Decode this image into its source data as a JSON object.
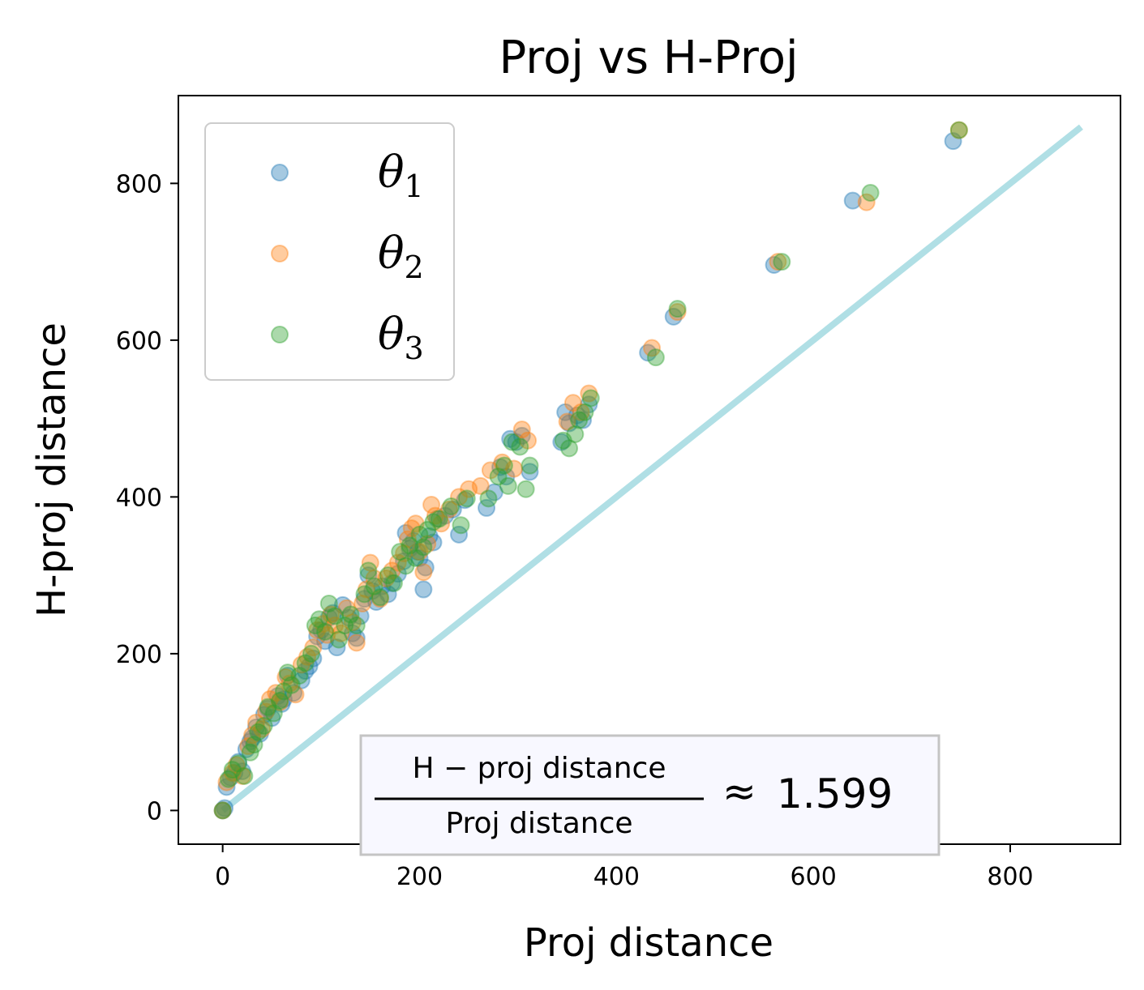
{
  "chart_data": {
    "type": "scatter",
    "title": "Proj vs H-Proj",
    "xlabel": "Proj distance",
    "ylabel": "H-proj distance",
    "xlim": [
      -45,
      912
    ],
    "ylim": [
      -43,
      912
    ],
    "xticks": [
      0,
      200,
      400,
      600,
      800
    ],
    "yticks": [
      0,
      200,
      400,
      600,
      800
    ],
    "xtick_labels": [
      "0",
      "200",
      "400",
      "600",
      "800"
    ],
    "ytick_labels": [
      "0",
      "200",
      "400",
      "600",
      "800"
    ],
    "grid": false,
    "legend_position": "top-left",
    "reference_line": {
      "x": [
        0,
        872
      ],
      "y": [
        0,
        872
      ],
      "color": "#b0dfe5"
    },
    "annotation": {
      "numerator": "H − proj  distance",
      "denominator": "Proj  distance",
      "approx": "≈",
      "value": "1.599"
    },
    "series": [
      {
        "name_base": "θ",
        "name_sub": "1",
        "color": "#1f77b4",
        "points": [
          [
            0,
            0
          ],
          [
            2,
            3
          ],
          [
            4,
            30
          ],
          [
            8,
            42
          ],
          [
            12,
            48
          ],
          [
            16,
            62
          ],
          [
            20,
            50
          ],
          [
            24,
            78
          ],
          [
            28,
            88
          ],
          [
            30,
            92
          ],
          [
            34,
            106
          ],
          [
            38,
            98
          ],
          [
            42,
            122
          ],
          [
            46,
            130
          ],
          [
            50,
            118
          ],
          [
            56,
            146
          ],
          [
            60,
            136
          ],
          [
            62,
            142
          ],
          [
            66,
            172
          ],
          [
            72,
            150
          ],
          [
            80,
            166
          ],
          [
            84,
            178
          ],
          [
            88,
            184
          ],
          [
            92,
            194
          ],
          [
            96,
            222
          ],
          [
            100,
            230
          ],
          [
            104,
            216
          ],
          [
            108,
            246
          ],
          [
            112,
            252
          ],
          [
            116,
            208
          ],
          [
            122,
            262
          ],
          [
            128,
            246
          ],
          [
            132,
            226
          ],
          [
            136,
            220
          ],
          [
            140,
            248
          ],
          [
            144,
            270
          ],
          [
            148,
            300
          ],
          [
            152,
            280
          ],
          [
            156,
            266
          ],
          [
            162,
            286
          ],
          [
            168,
            276
          ],
          [
            172,
            290
          ],
          [
            178,
            302
          ],
          [
            184,
            318
          ],
          [
            186,
            354
          ],
          [
            190,
            334
          ],
          [
            194,
            344
          ],
          [
            198,
            330
          ],
          [
            200,
            322
          ],
          [
            204,
            282
          ],
          [
            206,
            310
          ],
          [
            210,
            350
          ],
          [
            214,
            342
          ],
          [
            218,
            372
          ],
          [
            226,
            376
          ],
          [
            234,
            384
          ],
          [
            240,
            352
          ],
          [
            246,
            396
          ],
          [
            268,
            386
          ],
          [
            276,
            406
          ],
          [
            282,
            438
          ],
          [
            288,
            426
          ],
          [
            292,
            474
          ],
          [
            298,
            470
          ],
          [
            304,
            478
          ],
          [
            312,
            432
          ],
          [
            344,
            470
          ],
          [
            348,
            508
          ],
          [
            352,
            494
          ],
          [
            360,
            504
          ],
          [
            366,
            498
          ],
          [
            372,
            518
          ],
          [
            432,
            584
          ],
          [
            458,
            630
          ],
          [
            560,
            696
          ],
          [
            640,
            778
          ],
          [
            742,
            854
          ]
        ]
      },
      {
        "name_base": "θ",
        "name_sub": "2",
        "color": "#ff7f0e",
        "points": [
          [
            0,
            0
          ],
          [
            4,
            36
          ],
          [
            10,
            48
          ],
          [
            14,
            58
          ],
          [
            20,
            44
          ],
          [
            26,
            82
          ],
          [
            30,
            96
          ],
          [
            34,
            112
          ],
          [
            40,
            104
          ],
          [
            44,
            126
          ],
          [
            48,
            142
          ],
          [
            54,
            150
          ],
          [
            58,
            138
          ],
          [
            64,
            170
          ],
          [
            68,
            162
          ],
          [
            74,
            148
          ],
          [
            80,
            186
          ],
          [
            86,
            196
          ],
          [
            92,
            208
          ],
          [
            96,
            230
          ],
          [
            102,
            238
          ],
          [
            106,
            224
          ],
          [
            110,
            250
          ],
          [
            114,
            236
          ],
          [
            120,
            226
          ],
          [
            126,
            258
          ],
          [
            132,
            240
          ],
          [
            136,
            214
          ],
          [
            142,
            264
          ],
          [
            146,
            282
          ],
          [
            150,
            316
          ],
          [
            154,
            296
          ],
          [
            160,
            270
          ],
          [
            166,
            296
          ],
          [
            172,
            306
          ],
          [
            178,
            316
          ],
          [
            184,
            328
          ],
          [
            188,
            346
          ],
          [
            192,
            360
          ],
          [
            196,
            366
          ],
          [
            200,
            330
          ],
          [
            204,
            304
          ],
          [
            208,
            340
          ],
          [
            212,
            390
          ],
          [
            216,
            376
          ],
          [
            222,
            366
          ],
          [
            230,
            384
          ],
          [
            240,
            400
          ],
          [
            250,
            410
          ],
          [
            262,
            414
          ],
          [
            272,
            434
          ],
          [
            284,
            444
          ],
          [
            296,
            436
          ],
          [
            304,
            486
          ],
          [
            310,
            472
          ],
          [
            350,
            496
          ],
          [
            356,
            520
          ],
          [
            364,
            508
          ],
          [
            372,
            532
          ],
          [
            436,
            590
          ],
          [
            462,
            636
          ],
          [
            564,
            700
          ],
          [
            654,
            776
          ],
          [
            748,
            868
          ]
        ]
      },
      {
        "name_base": "θ",
        "name_sub": "3",
        "color": "#2ca02c",
        "points": [
          [
            0,
            0
          ],
          [
            6,
            40
          ],
          [
            10,
            52
          ],
          [
            16,
            60
          ],
          [
            22,
            44
          ],
          [
            28,
            74
          ],
          [
            32,
            84
          ],
          [
            36,
            100
          ],
          [
            42,
            108
          ],
          [
            46,
            132
          ],
          [
            52,
            124
          ],
          [
            58,
            140
          ],
          [
            62,
            152
          ],
          [
            66,
            176
          ],
          [
            70,
            160
          ],
          [
            78,
            172
          ],
          [
            84,
            188
          ],
          [
            90,
            200
          ],
          [
            94,
            236
          ],
          [
            98,
            244
          ],
          [
            104,
            228
          ],
          [
            108,
            264
          ],
          [
            114,
            248
          ],
          [
            118,
            218
          ],
          [
            124,
            236
          ],
          [
            130,
            250
          ],
          [
            136,
            236
          ],
          [
            144,
            276
          ],
          [
            148,
            306
          ],
          [
            154,
            286
          ],
          [
            160,
            272
          ],
          [
            168,
            300
          ],
          [
            174,
            290
          ],
          [
            180,
            330
          ],
          [
            186,
            312
          ],
          [
            190,
            338
          ],
          [
            196,
            322
          ],
          [
            200,
            352
          ],
          [
            204,
            336
          ],
          [
            208,
            358
          ],
          [
            214,
            368
          ],
          [
            220,
            372
          ],
          [
            232,
            388
          ],
          [
            242,
            364
          ],
          [
            248,
            398
          ],
          [
            270,
            398
          ],
          [
            280,
            426
          ],
          [
            286,
            440
          ],
          [
            290,
            414
          ],
          [
            294,
            470
          ],
          [
            302,
            464
          ],
          [
            308,
            410
          ],
          [
            312,
            440
          ],
          [
            346,
            472
          ],
          [
            352,
            462
          ],
          [
            358,
            480
          ],
          [
            362,
            498
          ],
          [
            368,
            508
          ],
          [
            374,
            526
          ],
          [
            440,
            578
          ],
          [
            462,
            640
          ],
          [
            568,
            700
          ],
          [
            658,
            788
          ],
          [
            748,
            868
          ]
        ]
      }
    ]
  }
}
